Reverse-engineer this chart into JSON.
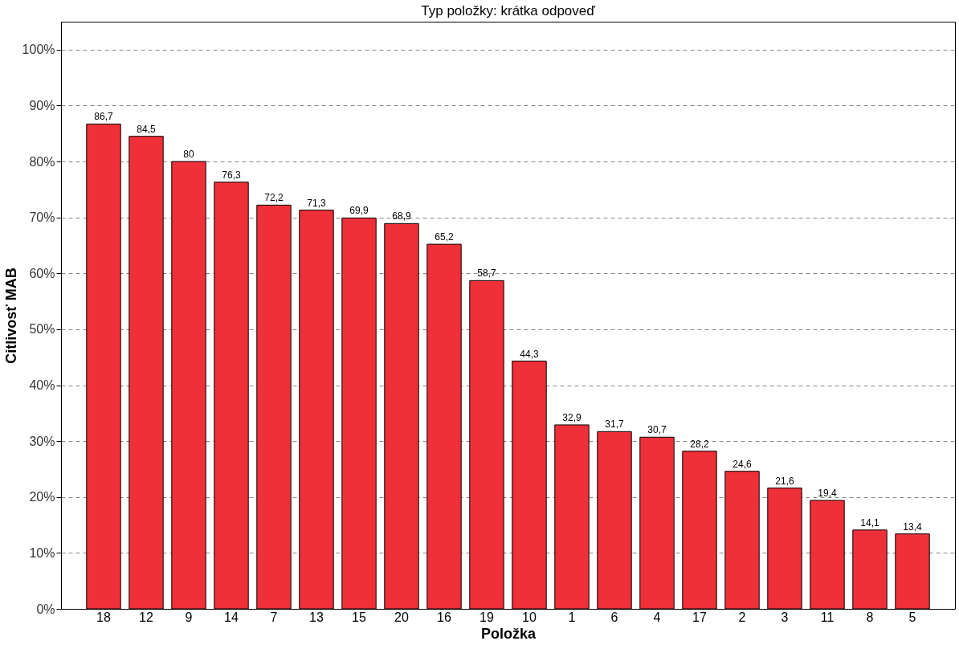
{
  "chart_data": {
    "type": "bar",
    "title": "Typ položky: krátka odpoveď",
    "xlabel": "Položka",
    "ylabel": "Citlivosť MAB",
    "categories": [
      "18",
      "12",
      "9",
      "14",
      "7",
      "13",
      "15",
      "20",
      "16",
      "19",
      "10",
      "1",
      "6",
      "4",
      "17",
      "2",
      "3",
      "11",
      "8",
      "5"
    ],
    "values": [
      86.7,
      84.5,
      80,
      76.3,
      72.2,
      71.3,
      69.9,
      68.9,
      65.2,
      58.7,
      44.3,
      32.9,
      31.7,
      30.7,
      28.2,
      24.6,
      21.6,
      19.4,
      14.1,
      13.4
    ],
    "value_labels": [
      "86,7",
      "84,5",
      "80",
      "76,3",
      "72,2",
      "71,3",
      "69,9",
      "68,9",
      "65,2",
      "58,7",
      "44,3",
      "32,9",
      "31,7",
      "30,7",
      "28,2",
      "24,6",
      "21,6",
      "19,4",
      "14,1",
      "13,4"
    ],
    "color": "#ef3038",
    "ylim": [
      0,
      105
    ],
    "yticks": [
      {
        "value": 0,
        "label": "0%"
      },
      {
        "value": 10,
        "label": "10%"
      },
      {
        "value": 20,
        "label": "20%"
      },
      {
        "value": 30,
        "label": "30%"
      },
      {
        "value": 40,
        "label": "40%"
      },
      {
        "value": 50,
        "label": "50%"
      },
      {
        "value": 60,
        "label": "60%"
      },
      {
        "value": 70,
        "label": "70%"
      },
      {
        "value": 80,
        "label": "80%"
      },
      {
        "value": 90,
        "label": "90%"
      },
      {
        "value": 100,
        "label": "100%"
      }
    ],
    "grid": "y",
    "line_style": "dashed"
  }
}
